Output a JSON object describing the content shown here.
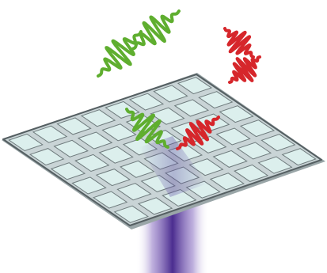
{
  "scene": {
    "colors": {
      "background": "#ffffff",
      "plate_fill": "#c9d4d6",
      "plate_stroke": "#555f62",
      "cell_fill": "#dcefed",
      "cell_stroke": "#6e7a7c",
      "beam_core": "#4b2d8f",
      "beam_edge": "#ffffff",
      "wave_green": "#5fae2f",
      "wave_red": "#d6262b"
    },
    "grid": {
      "rows": 6,
      "cols": 8
    },
    "icons": [
      "metasurface-plate",
      "light-beam",
      "green-wave-packet",
      "red-wave-packet"
    ]
  }
}
